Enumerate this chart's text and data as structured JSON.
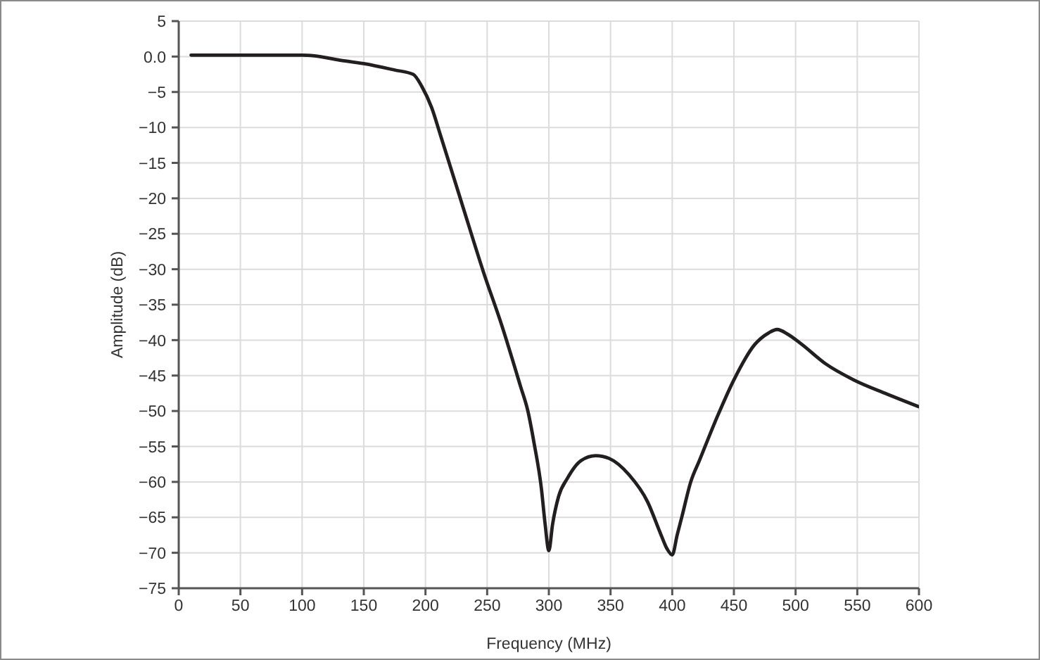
{
  "chart_data": {
    "type": "line",
    "xlabel": "Frequency (MHz)",
    "ylabel": "Amplitude (dB)",
    "x": [
      10,
      50,
      100,
      110,
      130,
      150,
      175,
      190,
      197,
      205,
      212,
      230,
      247,
      262,
      277,
      283,
      288,
      294,
      297,
      300,
      303,
      308,
      315,
      326,
      338,
      349,
      365,
      380,
      391,
      396,
      400,
      404,
      408,
      415,
      422,
      437,
      450,
      467,
      478,
      485,
      494,
      505,
      524,
      547,
      574,
      600
    ],
    "series": [
      {
        "color": "#231f20",
        "values": [
          0.2,
          0.2,
          0.2,
          0.1,
          -0.5,
          -1.0,
          -1.9,
          -2.5,
          -4.2,
          -7.2,
          -11,
          -21,
          -30.4,
          -38,
          -46.5,
          -50,
          -54.5,
          -61,
          -66,
          -69.7,
          -66,
          -62,
          -59.5,
          -57,
          -56.3,
          -56.7,
          -59,
          -62.8,
          -67.5,
          -69.5,
          -70.3,
          -67.5,
          -64.8,
          -60,
          -57,
          -50.6,
          -45.6,
          -40.6,
          -39,
          -38.5,
          -39.2,
          -40.6,
          -43.3,
          -45.6,
          -47.6,
          -49.4
        ]
      }
    ],
    "xlim": [
      0,
      600
    ],
    "xticks": [
      0,
      50,
      100,
      150,
      200,
      250,
      300,
      350,
      400,
      450,
      500,
      550,
      600
    ],
    "ylim": [
      -75,
      5
    ],
    "yticks": [
      {
        "value": -75,
        "label": "−75"
      },
      {
        "value": -70,
        "label": "−70"
      },
      {
        "value": -65,
        "label": "−65"
      },
      {
        "value": -60,
        "label": "−60"
      },
      {
        "value": -55,
        "label": "−55"
      },
      {
        "value": -50,
        "label": "−50"
      },
      {
        "value": -45,
        "label": "−45"
      },
      {
        "value": -40,
        "label": "−40"
      },
      {
        "value": -35,
        "label": "−35"
      },
      {
        "value": -30,
        "label": "−30"
      },
      {
        "value": -25,
        "label": "−25"
      },
      {
        "value": -20,
        "label": "−20"
      },
      {
        "value": -15,
        "label": "−15"
      },
      {
        "value": -10,
        "label": "−10"
      },
      {
        "value": -5,
        "label": "−5"
      },
      {
        "value": 0,
        "label": "0.0"
      },
      5
    ],
    "grid": true,
    "marker": "none",
    "line_style": "solid"
  }
}
